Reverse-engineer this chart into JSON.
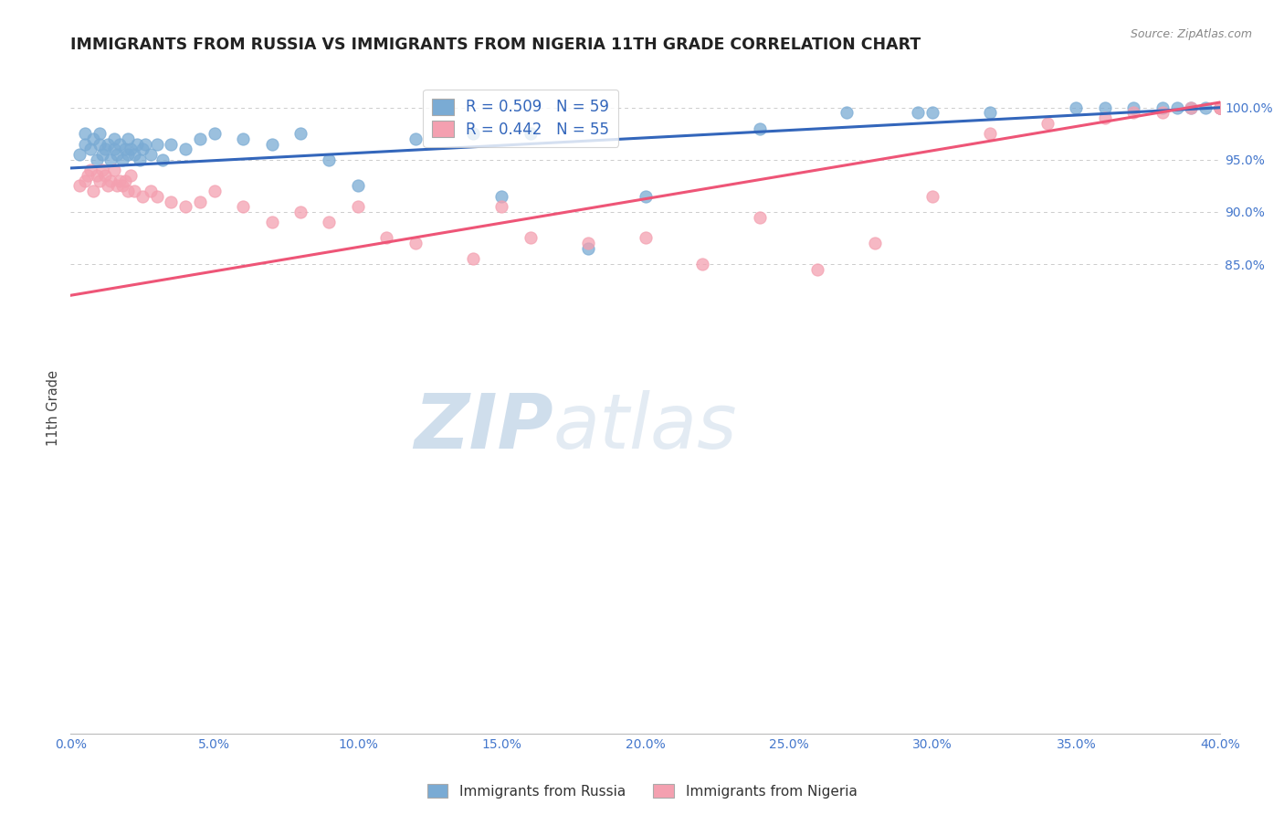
{
  "title": "IMMIGRANTS FROM RUSSIA VS IMMIGRANTS FROM NIGERIA 11TH GRADE CORRELATION CHART",
  "source": "Source: ZipAtlas.com",
  "ylabel": "11th Grade",
  "x_min": 0.0,
  "x_max": 40.0,
  "y_min": 40.0,
  "y_max": 102.5,
  "russia_R": 0.509,
  "russia_N": 59,
  "nigeria_R": 0.442,
  "nigeria_N": 55,
  "russia_color": "#7AABD4",
  "nigeria_color": "#F4A0B0",
  "russia_line_color": "#3366BB",
  "nigeria_line_color": "#EE5577",
  "legend_label_russia": "Immigrants from Russia",
  "legend_label_nigeria": "Immigrants from Nigeria",
  "watermark_zip": "ZIP",
  "watermark_atlas": "atlas",
  "russia_scatter_x": [
    0.3,
    0.5,
    0.5,
    0.7,
    0.8,
    0.9,
    1.0,
    1.0,
    1.1,
    1.2,
    1.3,
    1.4,
    1.5,
    1.5,
    1.6,
    1.7,
    1.8,
    1.9,
    2.0,
    2.0,
    2.1,
    2.2,
    2.3,
    2.4,
    2.5,
    2.6,
    2.8,
    3.0,
    3.2,
    3.5,
    4.0,
    4.5,
    5.0,
    6.0,
    7.0,
    8.0,
    9.0,
    10.0,
    12.0,
    14.0,
    15.0,
    16.0,
    18.0,
    20.0,
    24.0,
    27.0,
    29.5,
    30.0,
    32.0,
    35.0,
    36.0,
    37.0,
    38.0,
    38.5,
    39.0,
    39.5,
    40.0,
    40.0,
    40.0
  ],
  "russia_scatter_y": [
    95.5,
    96.5,
    97.5,
    96.0,
    97.0,
    95.0,
    96.5,
    97.5,
    95.5,
    96.0,
    96.5,
    95.0,
    96.0,
    97.0,
    95.5,
    96.5,
    95.0,
    96.0,
    95.5,
    97.0,
    96.0,
    95.5,
    96.5,
    95.0,
    96.0,
    96.5,
    95.5,
    96.5,
    95.0,
    96.5,
    96.0,
    97.0,
    97.5,
    97.0,
    96.5,
    97.5,
    95.0,
    92.5,
    97.0,
    97.5,
    91.5,
    97.5,
    86.5,
    91.5,
    98.0,
    99.5,
    99.5,
    99.5,
    99.5,
    100.0,
    100.0,
    100.0,
    100.0,
    100.0,
    100.0,
    100.0,
    100.0,
    100.0,
    100.0
  ],
  "nigeria_scatter_x": [
    0.3,
    0.5,
    0.6,
    0.7,
    0.8,
    0.9,
    1.0,
    1.1,
    1.2,
    1.3,
    1.4,
    1.5,
    1.6,
    1.7,
    1.8,
    1.9,
    2.0,
    2.1,
    2.2,
    2.5,
    2.8,
    3.0,
    3.5,
    4.0,
    4.5,
    5.0,
    6.0,
    7.0,
    8.0,
    9.0,
    10.0,
    11.0,
    12.0,
    14.0,
    15.0,
    16.0,
    18.0,
    20.0,
    22.0,
    24.0,
    26.0,
    28.0,
    30.0,
    32.0,
    34.0,
    36.0,
    37.0,
    38.0,
    39.0,
    40.0,
    40.0,
    40.0,
    40.0,
    40.0,
    40.0
  ],
  "nigeria_scatter_y": [
    92.5,
    93.0,
    93.5,
    94.0,
    92.0,
    93.5,
    93.0,
    94.0,
    93.5,
    92.5,
    93.0,
    94.0,
    92.5,
    93.0,
    92.5,
    93.0,
    92.0,
    93.5,
    92.0,
    91.5,
    92.0,
    91.5,
    91.0,
    90.5,
    91.0,
    92.0,
    90.5,
    89.0,
    90.0,
    89.0,
    90.5,
    87.5,
    87.0,
    85.5,
    90.5,
    87.5,
    87.0,
    87.5,
    85.0,
    89.5,
    84.5,
    87.0,
    91.5,
    97.5,
    98.5,
    99.0,
    99.5,
    99.5,
    100.0,
    100.0,
    100.0,
    100.0,
    100.0,
    100.0,
    100.0
  ],
  "russia_line_x0": 0.0,
  "russia_line_y0": 94.2,
  "russia_line_x1": 40.0,
  "russia_line_y1": 100.0,
  "nigeria_line_x0": 0.0,
  "nigeria_line_y0": 82.0,
  "nigeria_line_x1": 40.0,
  "nigeria_line_y1": 100.5,
  "yticks": [
    85.0,
    90.0,
    95.0,
    100.0
  ],
  "xticks": [
    0.0,
    5.0,
    10.0,
    15.0,
    20.0,
    25.0,
    30.0,
    35.0,
    40.0
  ]
}
